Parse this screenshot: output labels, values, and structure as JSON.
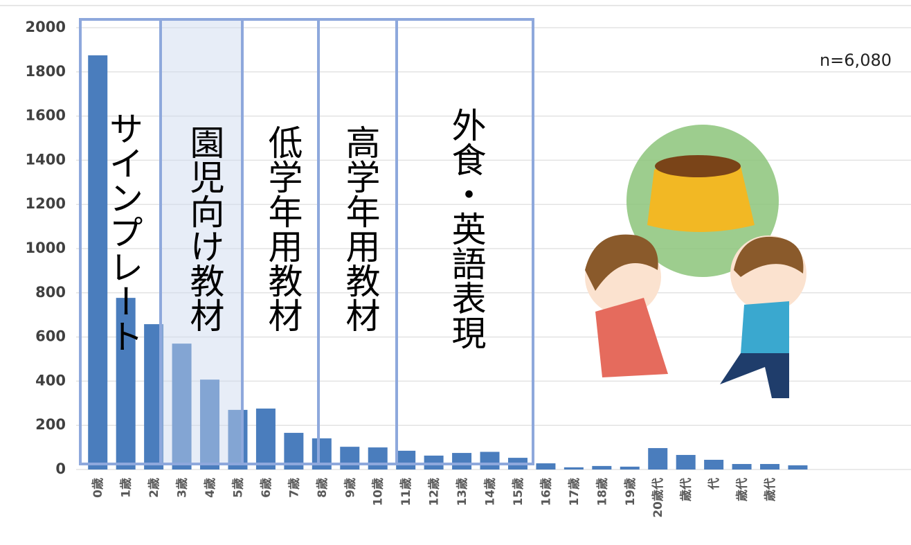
{
  "chart_data": {
    "type": "bar",
    "categories": [
      "0歳",
      "1歳",
      "2歳",
      "3歳",
      "4歳",
      "5歳",
      "6歳",
      "7歳",
      "8歳",
      "9歳",
      "10歳",
      "11歳",
      "12歳",
      "13歳",
      "14歳",
      "15歳",
      "16歳",
      "17歳",
      "18歳",
      "19歳",
      "20歳代",
      "歳代",
      "代",
      "歳代",
      "歳代",
      null
    ],
    "values": [
      1875,
      777,
      658,
      570,
      407,
      270,
      276,
      166,
      141,
      103,
      100,
      85,
      63,
      75,
      80,
      53,
      28,
      10,
      16,
      13,
      97,
      66,
      44,
      25,
      25,
      19
    ],
    "color": "#4a7dbd",
    "ylim": [
      0,
      2000
    ],
    "yticks": [
      0,
      200,
      400,
      600,
      800,
      1000,
      1200,
      1400,
      1600,
      1800,
      2000
    ],
    "grid": true,
    "annotations": [
      "n=6,080",
      "サインプレート",
      "園児向け教材",
      "低学年用教材",
      "高学年用教材",
      "外食・英語表現"
    ]
  }
}
